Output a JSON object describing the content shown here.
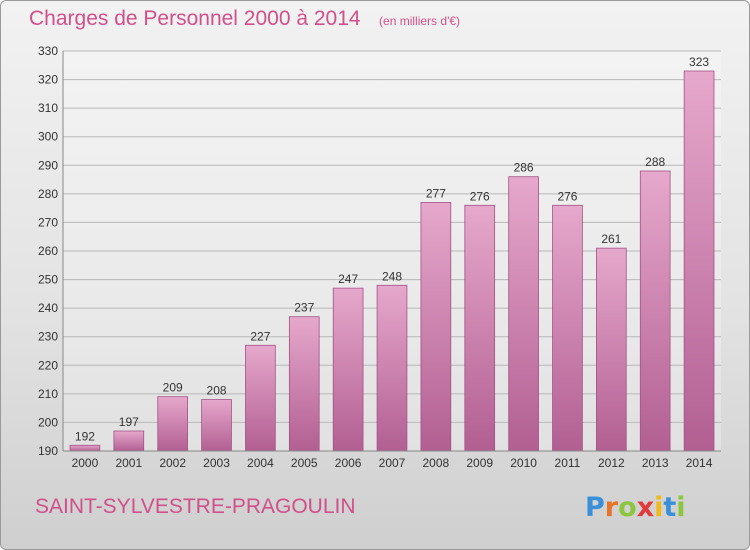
{
  "chart_data": {
    "type": "bar",
    "title": "Charges de Personnel 2000 à 2014",
    "subtitle": "(en milliers d'€)",
    "categories": [
      "2000",
      "2001",
      "2002",
      "2003",
      "2004",
      "2005",
      "2006",
      "2007",
      "2008",
      "2009",
      "2010",
      "2011",
      "2012",
      "2013",
      "2014"
    ],
    "values": [
      192,
      197,
      209,
      208,
      227,
      237,
      247,
      248,
      277,
      276,
      286,
      276,
      261,
      288,
      323
    ],
    "ylim": [
      190,
      330
    ],
    "yticks": [
      190,
      200,
      210,
      220,
      230,
      240,
      250,
      260,
      270,
      280,
      290,
      300,
      310,
      320,
      330
    ],
    "grid": true,
    "bar_color": "#d880b0"
  },
  "footer": {
    "commune": "SAINT-SYLVESTRE-PRAGOULIN"
  },
  "logo": {
    "text": "Proxiti"
  }
}
